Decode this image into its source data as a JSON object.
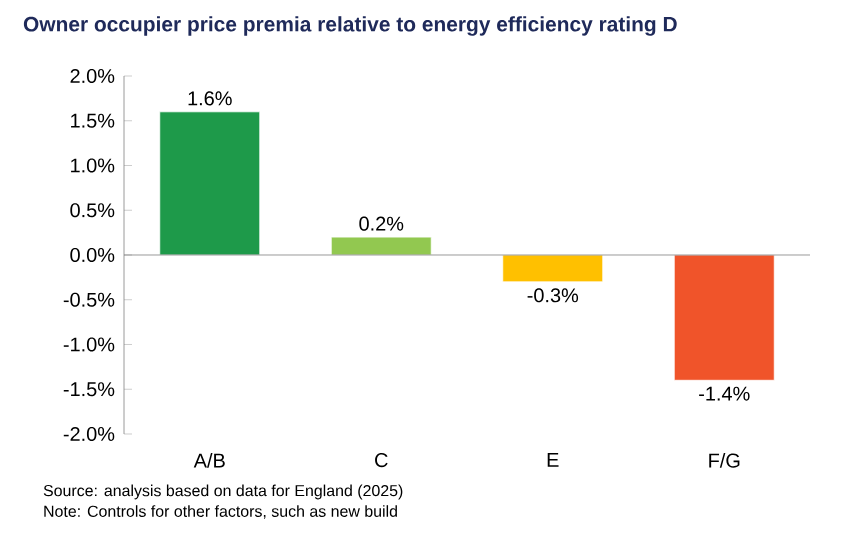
{
  "chart_data": {
    "type": "bar",
    "title": "Owner occupier price premia relative to energy efficiency rating D",
    "categories": [
      "A/B",
      "C",
      "E",
      "F/G"
    ],
    "values": [
      1.6,
      0.2,
      -0.3,
      -1.4
    ],
    "colors": [
      "#1e9a4a",
      "#92c850",
      "#ffc000",
      "#f0542a"
    ],
    "value_labels": [
      "1.6%",
      "0.2%",
      "-0.3%",
      "-1.4%"
    ],
    "ylim": [
      -2,
      2
    ],
    "yticks": [
      {
        "value": -2,
        "label": "-2.0%"
      },
      {
        "value": -1.5,
        "label": "-1.5%"
      },
      {
        "value": -1,
        "label": "-1.0%"
      },
      {
        "value": -0.5,
        "label": "-0.5%"
      },
      {
        "value": 0,
        "label": "0.0%"
      },
      {
        "value": 0.5,
        "label": "0.5%"
      },
      {
        "value": 1,
        "label": "1.0%"
      },
      {
        "value": 1.5,
        "label": "1.5%"
      },
      {
        "value": 2,
        "label": "2.0%"
      }
    ],
    "annotations": [
      "Source: analysis based on data for England (2025)",
      "Note: Controls for other factors, such as new build"
    ]
  }
}
